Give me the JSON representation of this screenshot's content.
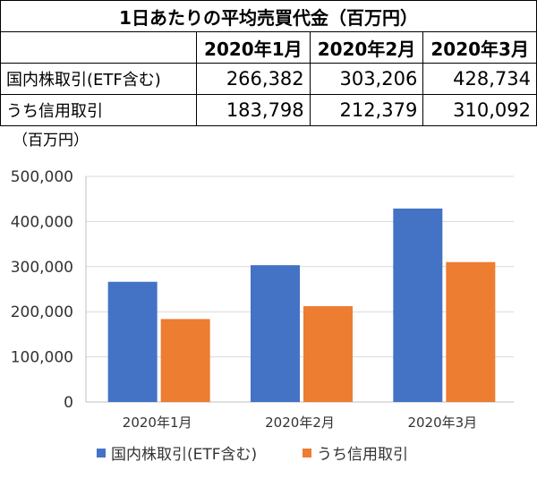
{
  "table": {
    "title": "1日あたりの平均売買代金（百万円）",
    "headers": [
      "",
      "2020年1月",
      "2020年2月",
      "2020年3月"
    ],
    "rows": [
      {
        "label": "国内株取引(ETF含む)",
        "values": [
          "266,382",
          "303,206",
          "428,734"
        ]
      },
      {
        "label": "うち信用取引",
        "values": [
          "183,798",
          "212,379",
          "310,092"
        ]
      }
    ]
  },
  "chart_data": {
    "type": "bar",
    "unit_label": "（百万円）",
    "categories": [
      "2020年1月",
      "2020年2月",
      "2020年3月"
    ],
    "series": [
      {
        "name": "国内株取引(ETF含む)",
        "values": [
          266382,
          303206,
          428734
        ],
        "color": "#4472C4"
      },
      {
        "name": "うち信用取引",
        "values": [
          183798,
          212379,
          310092
        ],
        "color": "#ED7D31"
      }
    ],
    "ylim": [
      0,
      500000
    ],
    "yticks": [
      0,
      100000,
      200000,
      300000,
      400000,
      500000
    ],
    "ytick_labels": [
      "0",
      "100,000",
      "200,000",
      "300,000",
      "400,000",
      "500,000"
    ],
    "grid": true,
    "legend": "bottom"
  }
}
